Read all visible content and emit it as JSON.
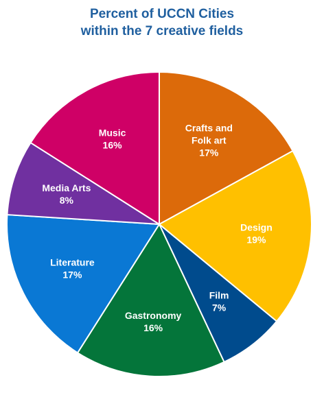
{
  "title": {
    "line1": "Percent of UCCN Cities",
    "line2": "within the 7 creative fields"
  },
  "chart_data": {
    "type": "pie",
    "title": "Percent of UCCN Cities within the 7 creative fields",
    "legend": "none",
    "slices": [
      {
        "label": [
          "Crafts and",
          "Folk art"
        ],
        "value": 17,
        "text": "17%",
        "color": "#dc6a0a"
      },
      {
        "label": [
          "Design"
        ],
        "value": 19,
        "text": "19%",
        "color": "#ffc000"
      },
      {
        "label": [
          "Film"
        ],
        "value": 7,
        "text": "7%",
        "color": "#004b8d"
      },
      {
        "label": [
          "Gastronomy"
        ],
        "value": 16,
        "text": "16%",
        "color": "#04753a"
      },
      {
        "label": [
          "Literature"
        ],
        "value": 17,
        "text": "17%",
        "color": "#0a78d4"
      },
      {
        "label": [
          "Media Arts"
        ],
        "value": 8,
        "text": "8%",
        "color": "#7030a0"
      },
      {
        "label": [
          "Music"
        ],
        "value": 16,
        "text": "16%",
        "color": "#cf0066"
      }
    ]
  }
}
